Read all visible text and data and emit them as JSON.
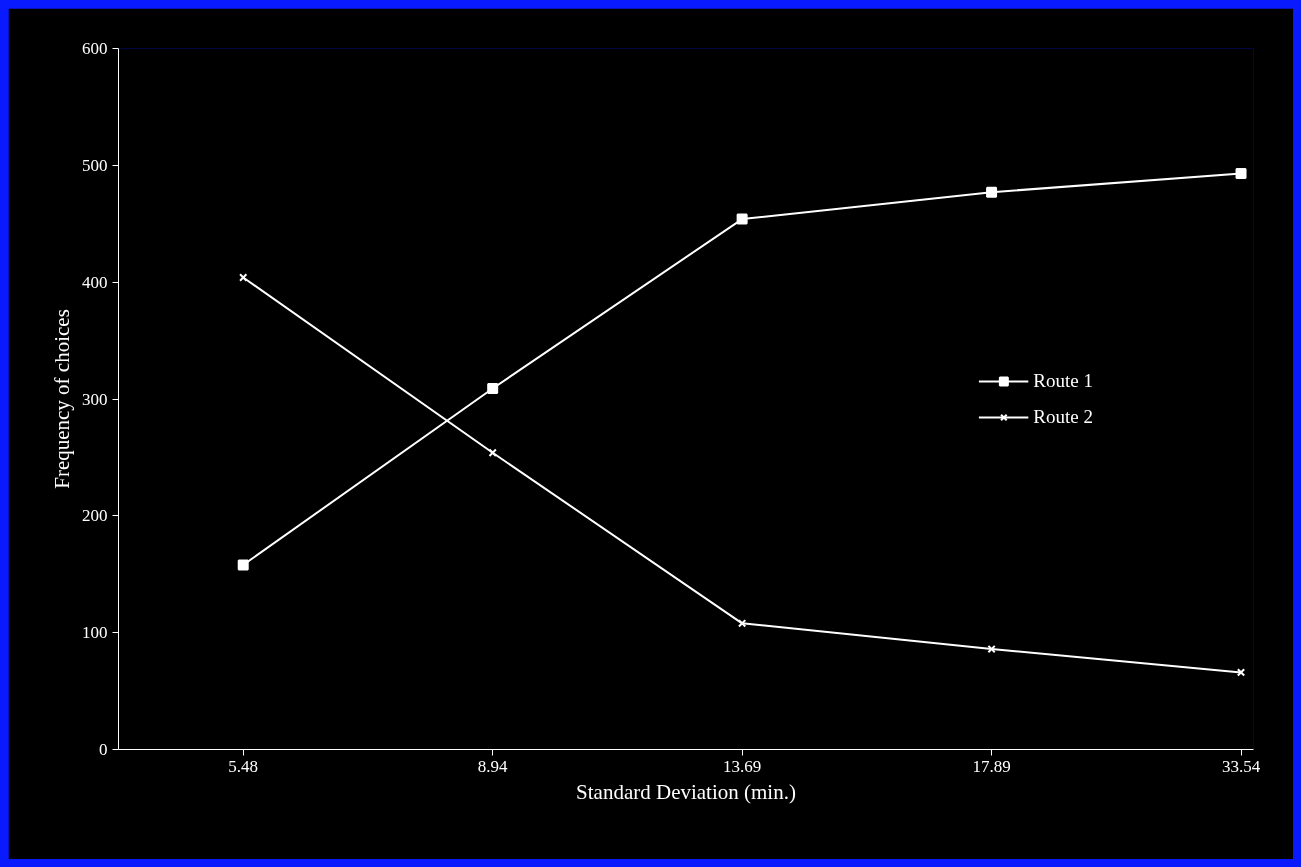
{
  "chart_data": {
    "type": "line",
    "xlabel": "Standard Deviation (min.)",
    "ylabel": "Frequency of choices",
    "categories": [
      "5.48",
      "8.94",
      "13.69",
      "17.89",
      "33.54"
    ],
    "series": [
      {
        "name": "Route 1",
        "color": "#ffffff",
        "marker": "square",
        "values": [
          158,
          309,
          454,
          477,
          493
        ]
      },
      {
        "name": "Route 2",
        "color": "#ffffff",
        "marker": "cross",
        "values": [
          404,
          254,
          108,
          86,
          66
        ]
      }
    ],
    "ylim": [
      0,
      600
    ],
    "yticks": [
      0,
      100,
      200,
      300,
      400,
      500,
      600
    ],
    "grid": false,
    "legend": "right",
    "line_style": "solid"
  }
}
